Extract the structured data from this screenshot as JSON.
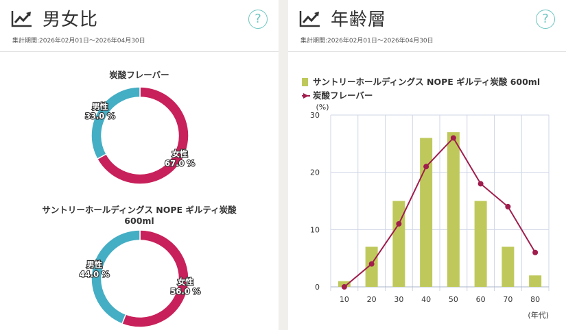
{
  "gender_panel": {
    "title": "男女比",
    "period": "集計期間:2026年02月01日～2026年04月30日",
    "help": "?"
  },
  "age_panel": {
    "title": "年齢層",
    "period": "集計期間:2026年02月01日～2026年04月30日",
    "help": "?"
  },
  "colors": {
    "female": "#c8205a",
    "male": "#44aec4",
    "bar": "#bfc95b",
    "line": "#a01d4d"
  },
  "chart_data": [
    {
      "type": "pie",
      "title": "炭酸フレーバー",
      "slices": [
        {
          "label": "女性",
          "value": 67.0,
          "display": "67.0 %"
        },
        {
          "label": "男性",
          "value": 33.0,
          "display": "33.0 %"
        }
      ]
    },
    {
      "type": "pie",
      "title": "サントリーホールディングス NOPE ギルティ炭酸 600ml",
      "slices": [
        {
          "label": "女性",
          "value": 56.0,
          "display": "56.0 %"
        },
        {
          "label": "男性",
          "value": 44.0,
          "display": "44.0 %"
        }
      ]
    },
    {
      "type": "bar",
      "categories": [
        "10",
        "20",
        "30",
        "40",
        "50",
        "60",
        "70",
        "80"
      ],
      "series": [
        {
          "name": "サントリーホールディングス NOPE ギルティ炭酸 600ml",
          "type": "bar",
          "values": [
            1,
            7,
            15,
            26,
            27,
            15,
            7,
            2
          ]
        },
        {
          "name": "炭酸フレーバー",
          "type": "line",
          "values": [
            0,
            4,
            11,
            21,
            26,
            18,
            14,
            6
          ]
        }
      ],
      "ylabel": "(%)",
      "xlabel": "(年代)",
      "ylim": [
        0,
        30
      ],
      "yticks": [
        0,
        10,
        20,
        30
      ],
      "grid": true,
      "legend": "top-left"
    }
  ]
}
